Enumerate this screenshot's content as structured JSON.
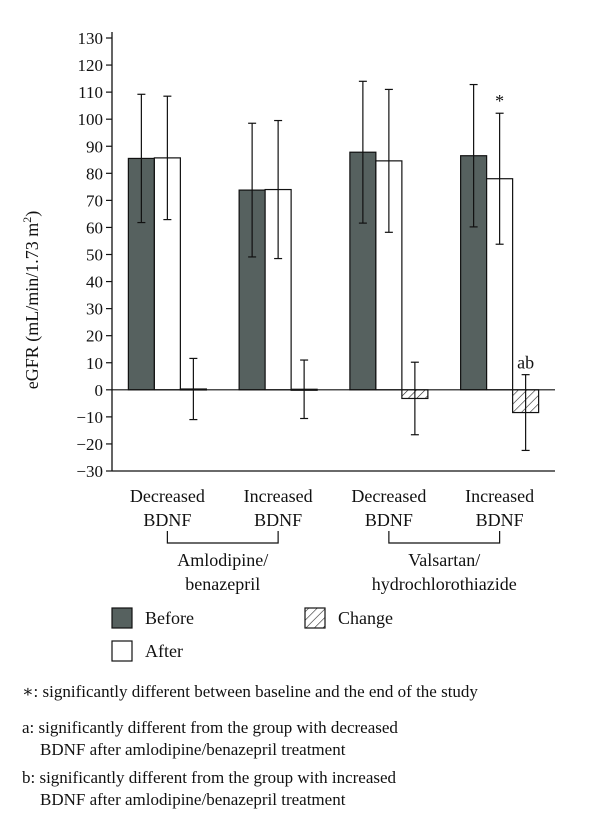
{
  "chart_data": {
    "type": "bar",
    "ylabel_main": "eGFR (mL/min/1.73 m",
    "ylabel_sup": "2",
    "ylabel_close": ")",
    "ylim": [
      -30,
      130
    ],
    "yticks": [
      -30,
      -20,
      -10,
      0,
      10,
      20,
      30,
      40,
      50,
      60,
      70,
      80,
      90,
      100,
      110,
      120,
      130
    ],
    "categories": [
      {
        "line1": "Decreased",
        "line2": "BDNF"
      },
      {
        "line1": "Increased",
        "line2": "BDNF"
      },
      {
        "line1": "Decreased",
        "line2": "BDNF"
      },
      {
        "line1": "Increased",
        "line2": "BDNF"
      }
    ],
    "groups": [
      {
        "line1": "Amlodipine/",
        "line2": "benazepril",
        "categories": [
          0,
          1
        ]
      },
      {
        "line1": "Valsartan/",
        "line2": "hydrochlorothiazide",
        "categories": [
          2,
          3
        ]
      }
    ],
    "series": [
      {
        "name": "Before",
        "color": "#56615f",
        "values": [
          85.5,
          73.8,
          87.8,
          86.5
        ],
        "errors": [
          23.7,
          24.7,
          26.2,
          26.3
        ]
      },
      {
        "name": "After",
        "color": "#ffffff",
        "values": [
          85.7,
          74.0,
          84.6,
          78.0
        ],
        "errors": [
          22.8,
          25.5,
          26.4,
          24.2
        ]
      },
      {
        "name": "Change",
        "color": "hatched",
        "values": [
          0.3,
          0.2,
          -3.2,
          -8.4
        ],
        "errors": [
          11.3,
          10.8,
          13.4,
          14.0
        ]
      }
    ],
    "annotations": [
      {
        "text": "*",
        "category": 3,
        "series": 1
      },
      {
        "text": "ab",
        "category": 3,
        "series": 2
      }
    ],
    "legend_placement": "below"
  },
  "footnotes": {
    "star": "∗: significantly different between baseline and the end of the study",
    "a_line1": "a: significantly different from the group with decreased",
    "a_line2": "BDNF after amlodipine/benazepril treatment",
    "b_line1": "b: significantly different from the group with increased",
    "b_line2": "BDNF after amlodipine/benazepril treatment"
  }
}
